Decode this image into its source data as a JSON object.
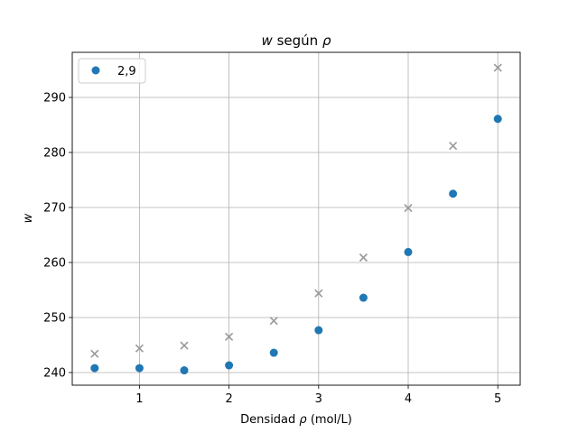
{
  "chart_data": {
    "type": "scatter",
    "title": "w según ρ",
    "title_parts": {
      "var": "w",
      "mid": " según ",
      "rho": "ρ"
    },
    "xlabel": "Densidad ρ (mol/L)",
    "xlabel_parts": {
      "pre": "Densidad ",
      "rho": "ρ",
      "post": " (mol/L)"
    },
    "ylabel": "w",
    "xlim": [
      0.25,
      5.25
    ],
    "ylim": [
      237.7,
      298.2
    ],
    "xticks": [
      1,
      2,
      3,
      4,
      5
    ],
    "yticks": [
      240,
      250,
      260,
      270,
      280,
      290
    ],
    "grid": true,
    "legend": {
      "placement": "top-left",
      "entries": [
        "2,9"
      ]
    },
    "series": [
      {
        "name": "2,9",
        "marker": "circle",
        "color": "#1f77b4",
        "x": [
          0.5,
          1.0,
          1.5,
          2.0,
          2.5,
          3.0,
          3.5,
          4.0,
          4.5,
          5.0
        ],
        "y": [
          240.8,
          240.8,
          240.4,
          241.3,
          243.6,
          247.7,
          253.6,
          261.9,
          272.5,
          286.1
        ]
      },
      {
        "marker": "x",
        "color": "#999999",
        "x": [
          0.5,
          1.0,
          1.5,
          2.0,
          2.5,
          3.0,
          3.5,
          4.0,
          4.5,
          5.0
        ],
        "y": [
          243.4,
          244.4,
          244.9,
          246.5,
          249.4,
          254.4,
          260.9,
          269.9,
          281.2,
          295.4
        ]
      }
    ]
  }
}
